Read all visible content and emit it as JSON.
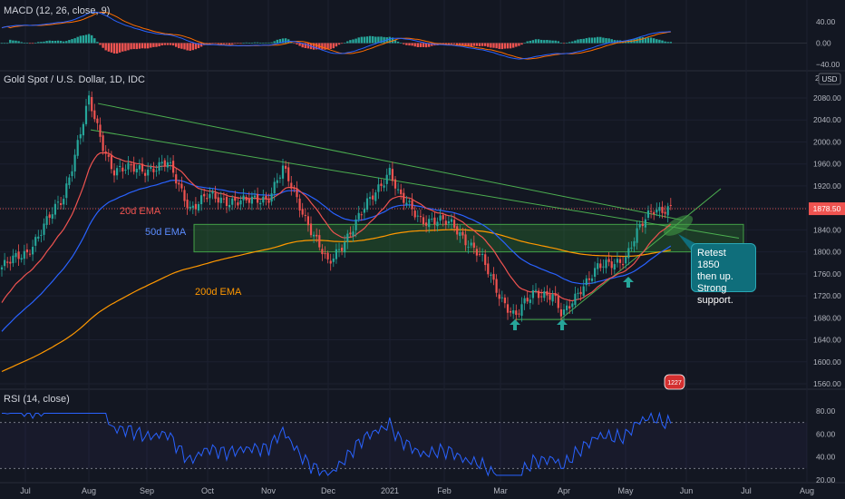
{
  "colors": {
    "background": "#131722",
    "up": "#26a69a",
    "down": "#ef5350",
    "grid": "#2a2e39",
    "trend": "#4caf50",
    "ema20": "#ef5350",
    "ema50": "#2962ff",
    "ema200": "#ff9800",
    "rsi": "#2962ff",
    "macd": "#2962ff",
    "signal": "#ff6d00",
    "zone": "#1b5e20",
    "arrow": "#26a69a",
    "callout": "#0f6e7b"
  },
  "macd_panel": {
    "label": "MACD (12, 26, close, 9)",
    "ticks": [
      "40.00",
      "0.00",
      "−40.00"
    ]
  },
  "main_panel": {
    "title": "Gold Spot / U.S. Dollar, 1D, IDC",
    "currency": "USD",
    "top_tick": "2",
    "ticks": [
      "2080.00",
      "2040.00",
      "2000.00",
      "1960.00",
      "1920.00",
      "1880.00",
      "1840.00",
      "1800.00",
      "1760.00",
      "1720.00",
      "1680.00",
      "1640.00",
      "1600.00",
      "1560.00"
    ],
    "last_price": "1878.50",
    "ema_labels": {
      "ema20": "20d EMA",
      "ema50": "50d EMA",
      "ema200": "200d EMA"
    },
    "callout": [
      "Retest 1850",
      "then up.",
      "Strong",
      "support."
    ],
    "badge": "1227"
  },
  "rsi_panel": {
    "label": "RSI (14, close)",
    "ticks": [
      "80.00",
      "60.00",
      "40.00",
      "20.00"
    ]
  },
  "x_axis": {
    "labels": [
      "Jul",
      "Aug",
      "Sep",
      "Oct",
      "Nov",
      "Dec",
      "2021",
      "Feb",
      "Mar",
      "Apr",
      "May",
      "Jun",
      "Jul",
      "Aug"
    ]
  },
  "chart_data": {
    "type": "line",
    "title": "Gold Spot / U.S. Dollar, 1D, IDC",
    "price_range": [
      1540,
      2100
    ],
    "key_points": [
      {
        "x": "Jul",
        "y": 1770
      },
      {
        "x": "Aug",
        "y": 2075
      },
      {
        "x": "Sep",
        "y": 1950
      },
      {
        "x": "Oct",
        "y": 1880
      },
      {
        "x": "Nov",
        "y": 1900
      },
      {
        "x": "Dec",
        "y": 1775
      },
      {
        "x": "2021",
        "y": 1950
      },
      {
        "x": "Feb",
        "y": 1845
      },
      {
        "x": "Mar",
        "y": 1680
      },
      {
        "x": "Apr",
        "y": 1720
      },
      {
        "x": "May",
        "y": 1790
      },
      {
        "x": "Jun",
        "y": 1890
      }
    ],
    "last_price": 1878.5,
    "support_zone": [
      1800,
      1850
    ],
    "support_line": 1677,
    "rsi_range": [
      20,
      80
    ],
    "macd_range": [
      -40,
      40
    ]
  }
}
